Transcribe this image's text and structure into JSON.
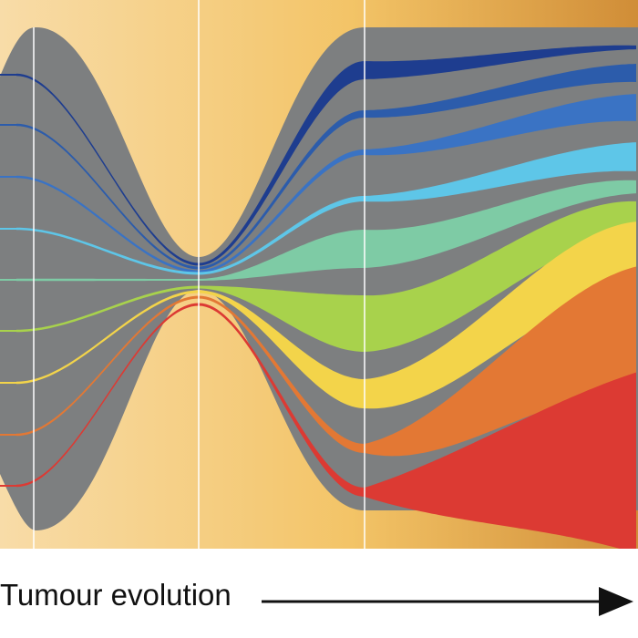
{
  "figure": {
    "caption": "Tumour evolution",
    "background_gradient": [
      "#f8dca8",
      "#f3c467",
      "#d08d37"
    ],
    "body_color": "#7d7f80",
    "divider_color": "#ffffff",
    "arrow_color": "#111111"
  },
  "diagram": {
    "structure": "fish-plot of subclonal lineages diverging through a bottleneck",
    "stages": 3,
    "clones": [
      {
        "color": "#1e3d8f"
      },
      {
        "color": "#2c5cab"
      },
      {
        "color": "#3a73c4"
      },
      {
        "color": "#5ec6e8"
      },
      {
        "color": "#7ecba5"
      },
      {
        "color": "#a8d24c"
      },
      {
        "color": "#f3d44a"
      },
      {
        "color": "#e37834"
      },
      {
        "color": "#dc3a33"
      }
    ]
  }
}
